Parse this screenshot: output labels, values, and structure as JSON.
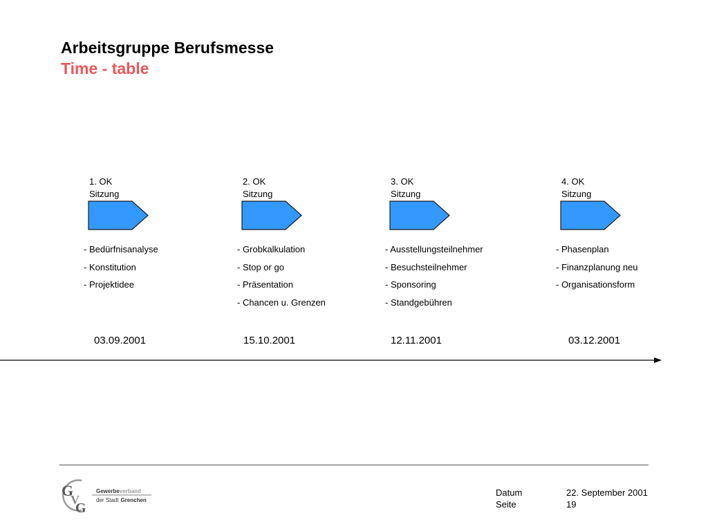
{
  "header": {
    "title": "Arbeitsgruppe Berufsmesse",
    "subtitle": "Time - table"
  },
  "milestones": [
    {
      "label_line1": "1. OK",
      "label_line2": "Sitzung",
      "items": [
        "- Bedürfnisanalyse",
        "- Konstitution",
        "- Projektidee"
      ],
      "date": "03.09.2001"
    },
    {
      "label_line1": "2. OK",
      "label_line2": "Sitzung",
      "items": [
        "- Grobkalkulation",
        "- Stop or go",
        "- Präsentation",
        "- Chancen u. Grenzen"
      ],
      "date": "15.10.2001"
    },
    {
      "label_line1": "3. OK",
      "label_line2": "Sitzung",
      "items": [
        "- Ausstellungsteilnehmer",
        "- Besuchsteilnehmer",
        "- Sponsoring",
        "- Standgebühren"
      ],
      "date": "12.11.2001"
    },
    {
      "label_line1": "4. OK",
      "label_line2": "Sitzung",
      "items": [
        "- Phasenplan",
        "- Finanzplanung neu",
        "- Organisationsform"
      ],
      "date": "03.12.2001"
    }
  ],
  "footer": {
    "logo_initials_g": "G",
    "logo_initials_v": "V",
    "logo_initials_g2": "G",
    "logo_line1_a": "Gewerbe",
    "logo_line1_b": "verband",
    "logo_line2_a": "der Stadt",
    "logo_line2_b": "Grenchen",
    "datum_label": "Datum",
    "datum_value": "22. September 2001",
    "seite_label": "Seite",
    "seite_value": "19"
  },
  "colors": {
    "title": "#000000",
    "subtitle": "#e8585a",
    "arrow_fill": "#3399ff",
    "arrow_stroke": "#1a1a1a"
  }
}
